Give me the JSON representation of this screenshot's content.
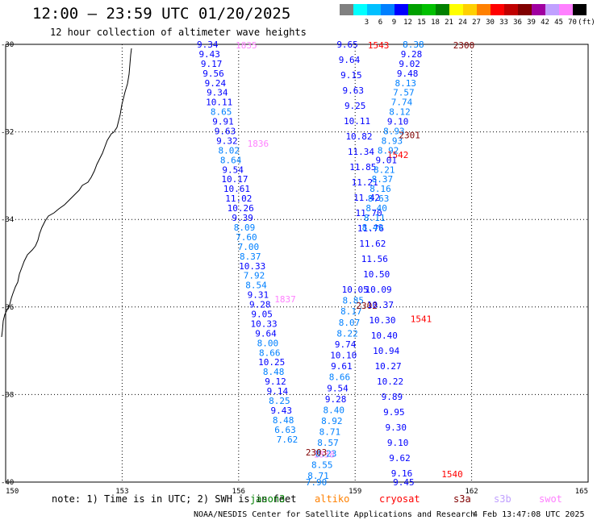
{
  "header": {
    "title": "12:00 – 23:59 UTC 01/20/2025",
    "subtitle": "12 hour collection of altimeter wave heights"
  },
  "legend": {
    "unit": "(ft)",
    "items": [
      {
        "label": "",
        "color": "#808080"
      },
      {
        "label": "3",
        "color": "#00ffff"
      },
      {
        "label": "6",
        "color": "#00c0ff"
      },
      {
        "label": "9",
        "color": "#0080ff"
      },
      {
        "label": "12",
        "color": "#0000ff"
      },
      {
        "label": "15",
        "color": "#00a000"
      },
      {
        "label": "18",
        "color": "#00c000"
      },
      {
        "label": "21",
        "color": "#008000"
      },
      {
        "label": "24",
        "color": "#ffff00"
      },
      {
        "label": "27",
        "color": "#ffd000"
      },
      {
        "label": "30",
        "color": "#ff8000"
      },
      {
        "label": "33",
        "color": "#ff0000"
      },
      {
        "label": "36",
        "color": "#c00000"
      },
      {
        "label": "39",
        "color": "#800000"
      },
      {
        "label": "42",
        "color": "#a000a0"
      },
      {
        "label": "45",
        "color": "#c0a0ff"
      },
      {
        "label": "70",
        "color": "#ff80ff"
      },
      {
        "label": "",
        "color": "#000000"
      }
    ]
  },
  "axes": {
    "lon_ticks": [
      "150",
      "153",
      "156",
      "159",
      "162",
      "165"
    ],
    "lat_ticks": [
      "-30",
      "-32",
      "-34",
      "-36",
      "-38",
      "-40"
    ]
  },
  "coast": [
    [
      163,
      60
    ],
    [
      162,
      68
    ],
    [
      161,
      80
    ],
    [
      160,
      92
    ],
    [
      158,
      104
    ],
    [
      155,
      114
    ],
    [
      153,
      122
    ],
    [
      151,
      130
    ],
    [
      149,
      142
    ],
    [
      147,
      150
    ],
    [
      145,
      158
    ],
    [
      141,
      164
    ],
    [
      138,
      166
    ],
    [
      133,
      174
    ],
    [
      130,
      182
    ],
    [
      127,
      190
    ],
    [
      123,
      198
    ],
    [
      120,
      204
    ],
    [
      117,
      212
    ],
    [
      113,
      220
    ],
    [
      109,
      226
    ],
    [
      102,
      230
    ],
    [
      98,
      236
    ],
    [
      92,
      242
    ],
    [
      86,
      248
    ],
    [
      80,
      254
    ],
    [
      73,
      259
    ],
    [
      67,
      264
    ],
    [
      60,
      268
    ],
    [
      56,
      274
    ],
    [
      52,
      282
    ],
    [
      49,
      290
    ],
    [
      47,
      298
    ],
    [
      44,
      305
    ],
    [
      40,
      310
    ],
    [
      34,
      316
    ],
    [
      30,
      324
    ],
    [
      27,
      332
    ],
    [
      24,
      340
    ],
    [
      22,
      350
    ],
    [
      19,
      356
    ],
    [
      16,
      364
    ],
    [
      14,
      370
    ],
    [
      12,
      378
    ],
    [
      9,
      384
    ],
    [
      6,
      390
    ],
    [
      4,
      398
    ],
    [
      3,
      410
    ],
    [
      2,
      418
    ]
  ],
  "tracks": [
    {
      "times": [
        {
          "text": "1835",
          "lon": 156.2,
          "lat": -30.0,
          "color": "#ff80ff"
        },
        {
          "text": "1836",
          "lon": 156.5,
          "lat": -32.25,
          "color": "#ff80ff"
        },
        {
          "text": "1837",
          "lon": 157.2,
          "lat": -35.8,
          "color": "#ff80ff"
        },
        {
          "text": "1838",
          "lon": 158.2,
          "lat": -39.35,
          "color": "#ff80ff"
        }
      ],
      "points": [
        {
          "v": "9.34",
          "lon": 155.2,
          "lat": -30.0,
          "color": "#0000ff"
        },
        {
          "v": "9.43",
          "lon": 155.25,
          "lat": -30.22,
          "color": "#0000ff"
        },
        {
          "v": "9.17",
          "lon": 155.3,
          "lat": -30.44,
          "color": "#0000ff"
        },
        {
          "v": "9.56",
          "lon": 155.35,
          "lat": -30.66,
          "color": "#0000ff"
        },
        {
          "v": "9.24",
          "lon": 155.4,
          "lat": -30.88,
          "color": "#0000ff"
        },
        {
          "v": "9.34",
          "lon": 155.45,
          "lat": -31.1,
          "color": "#0000ff"
        },
        {
          "v": "10.11",
          "lon": 155.5,
          "lat": -31.32,
          "color": "#0000ff"
        },
        {
          "v": "8.65",
          "lon": 155.55,
          "lat": -31.54,
          "color": "#0080ff"
        },
        {
          "v": "9.91",
          "lon": 155.6,
          "lat": -31.76,
          "color": "#0000ff"
        },
        {
          "v": "9.63",
          "lon": 155.65,
          "lat": -31.98,
          "color": "#0000ff"
        },
        {
          "v": "9.32",
          "lon": 155.7,
          "lat": -32.2,
          "color": "#0000ff"
        },
        {
          "v": "8.02",
          "lon": 155.75,
          "lat": -32.42,
          "color": "#0080ff"
        },
        {
          "v": "8.64",
          "lon": 155.8,
          "lat": -32.64,
          "color": "#0080ff"
        },
        {
          "v": "9.54",
          "lon": 155.85,
          "lat": -32.86,
          "color": "#0000ff"
        },
        {
          "v": "10.17",
          "lon": 155.9,
          "lat": -33.08,
          "color": "#0000ff"
        },
        {
          "v": "10.61",
          "lon": 155.95,
          "lat": -33.3,
          "color": "#0000ff"
        },
        {
          "v": "11.02",
          "lon": 156.0,
          "lat": -33.52,
          "color": "#0000ff"
        },
        {
          "v": "10.26",
          "lon": 156.05,
          "lat": -33.74,
          "color": "#0000ff"
        },
        {
          "v": "9.39",
          "lon": 156.1,
          "lat": -33.96,
          "color": "#0000ff"
        },
        {
          "v": "8.09",
          "lon": 156.15,
          "lat": -34.18,
          "color": "#0080ff"
        },
        {
          "v": "7.60",
          "lon": 156.2,
          "lat": -34.4,
          "color": "#0080ff"
        },
        {
          "v": "7.00",
          "lon": 156.25,
          "lat": -34.62,
          "color": "#0080ff"
        },
        {
          "v": "8.37",
          "lon": 156.3,
          "lat": -34.84,
          "color": "#0080ff"
        },
        {
          "v": "10.33",
          "lon": 156.35,
          "lat": -35.06,
          "color": "#0000ff"
        },
        {
          "v": "7.92",
          "lon": 156.4,
          "lat": -35.28,
          "color": "#0080ff"
        },
        {
          "v": "8.54",
          "lon": 156.45,
          "lat": -35.5,
          "color": "#0080ff"
        },
        {
          "v": "9.31",
          "lon": 156.5,
          "lat": -35.72,
          "color": "#0000ff"
        },
        {
          "v": "9.28",
          "lon": 156.55,
          "lat": -35.94,
          "color": "#0000ff"
        },
        {
          "v": "9.05",
          "lon": 156.6,
          "lat": -36.16,
          "color": "#0000ff"
        },
        {
          "v": "10.33",
          "lon": 156.65,
          "lat": -36.38,
          "color": "#0000ff"
        },
        {
          "v": "9.64",
          "lon": 156.7,
          "lat": -36.6,
          "color": "#0000ff"
        },
        {
          "v": "8.00",
          "lon": 156.75,
          "lat": -36.82,
          "color": "#0080ff"
        },
        {
          "v": "8.66",
          "lon": 156.8,
          "lat": -37.04,
          "color": "#0080ff"
        },
        {
          "v": "10.25",
          "lon": 156.85,
          "lat": -37.26,
          "color": "#0000ff"
        },
        {
          "v": "8.48",
          "lon": 156.9,
          "lat": -37.48,
          "color": "#0080ff"
        },
        {
          "v": "9.12",
          "lon": 156.95,
          "lat": -37.7,
          "color": "#0000ff"
        },
        {
          "v": "9.14",
          "lon": 157.0,
          "lat": -37.92,
          "color": "#0000ff"
        },
        {
          "v": "8.25",
          "lon": 157.05,
          "lat": -38.14,
          "color": "#0080ff"
        },
        {
          "v": "9.43",
          "lon": 157.1,
          "lat": -38.36,
          "color": "#0000ff"
        },
        {
          "v": "8.48",
          "lon": 157.15,
          "lat": -38.58,
          "color": "#0080ff"
        },
        {
          "v": "6.63",
          "lon": 157.2,
          "lat": -38.8,
          "color": "#0080ff"
        },
        {
          "v": "7.62",
          "lon": 157.25,
          "lat": -39.02,
          "color": "#0080ff"
        }
      ]
    },
    {
      "times": [
        {
          "text": "2302",
          "lon": 159.3,
          "lat": -35.95,
          "color": "#800000"
        },
        {
          "text": "2303",
          "lon": 158.0,
          "lat": -39.3,
          "color": "#800000"
        }
      ],
      "points": [
        {
          "v": "10.05",
          "lon": 159.0,
          "lat": -35.6,
          "color": "#0000ff"
        },
        {
          "v": "8.85",
          "lon": 158.95,
          "lat": -35.85,
          "color": "#0080ff"
        },
        {
          "v": "8.17",
          "lon": 158.9,
          "lat": -36.1,
          "color": "#0080ff"
        },
        {
          "v": "8.07",
          "lon": 158.85,
          "lat": -36.35,
          "color": "#0080ff"
        },
        {
          "v": "8.22",
          "lon": 158.8,
          "lat": -36.6,
          "color": "#0080ff"
        },
        {
          "v": "9.74",
          "lon": 158.75,
          "lat": -36.85,
          "color": "#0000ff"
        },
        {
          "v": "10.10",
          "lon": 158.7,
          "lat": -37.1,
          "color": "#0000ff"
        },
        {
          "v": "9.61",
          "lon": 158.65,
          "lat": -37.35,
          "color": "#0000ff"
        },
        {
          "v": "8.66",
          "lon": 158.6,
          "lat": -37.6,
          "color": "#0080ff"
        },
        {
          "v": "9.54",
          "lon": 158.55,
          "lat": -37.85,
          "color": "#0000ff"
        },
        {
          "v": "9.28",
          "lon": 158.5,
          "lat": -38.1,
          "color": "#0000ff"
        },
        {
          "v": "8.40",
          "lon": 158.45,
          "lat": -38.35,
          "color": "#0080ff"
        },
        {
          "v": "8.92",
          "lon": 158.4,
          "lat": -38.6,
          "color": "#0080ff"
        },
        {
          "v": "8.71",
          "lon": 158.35,
          "lat": -38.85,
          "color": "#0080ff"
        },
        {
          "v": "8.57",
          "lon": 158.3,
          "lat": -39.1,
          "color": "#0080ff"
        },
        {
          "v": "8.23",
          "lon": 158.25,
          "lat": -39.35,
          "color": "#0080ff"
        },
        {
          "v": "8.55",
          "lon": 158.15,
          "lat": -39.6,
          "color": "#0080ff"
        },
        {
          "v": "8.71",
          "lon": 158.05,
          "lat": -39.85,
          "color": "#0080ff"
        },
        {
          "v": "7.90",
          "lon": 158.0,
          "lat": -40.0,
          "color": "#0080ff"
        }
      ]
    },
    {
      "times": [
        {
          "text": "1543",
          "lon": 159.6,
          "lat": -30.0,
          "color": "#ff0000"
        },
        {
          "text": "1542",
          "lon": 160.1,
          "lat": -32.5,
          "color": "#ff0000"
        },
        {
          "text": "1541",
          "lon": 160.7,
          "lat": -36.25,
          "color": "#ff0000"
        },
        {
          "text": "1540",
          "lon": 161.5,
          "lat": -39.8,
          "color": "#ff0000"
        }
      ],
      "points": [
        {
          "v": "9.65",
          "lon": 158.8,
          "lat": -30.0,
          "color": "#0000ff"
        },
        {
          "v": "9.64",
          "lon": 158.85,
          "lat": -30.35,
          "color": "#0000ff"
        },
        {
          "v": "9.15",
          "lon": 158.9,
          "lat": -30.7,
          "color": "#0000ff"
        },
        {
          "v": "9.63",
          "lon": 158.95,
          "lat": -31.05,
          "color": "#0000ff"
        },
        {
          "v": "9.25",
          "lon": 159.0,
          "lat": -31.4,
          "color": "#0000ff"
        },
        {
          "v": "10.11",
          "lon": 159.05,
          "lat": -31.75,
          "color": "#0000ff"
        },
        {
          "v": "10.82",
          "lon": 159.1,
          "lat": -32.1,
          "color": "#0000ff"
        },
        {
          "v": "11.34",
          "lon": 159.15,
          "lat": -32.45,
          "color": "#0000ff"
        },
        {
          "v": "11.85",
          "lon": 159.2,
          "lat": -32.8,
          "color": "#0000ff"
        },
        {
          "v": "11.21",
          "lon": 159.25,
          "lat": -33.15,
          "color": "#0000ff"
        },
        {
          "v": "11.42",
          "lon": 159.3,
          "lat": -33.5,
          "color": "#0000ff"
        },
        {
          "v": "11.70",
          "lon": 159.35,
          "lat": -33.85,
          "color": "#0000ff"
        },
        {
          "v": "11.76",
          "lon": 159.4,
          "lat": -34.2,
          "color": "#0000ff"
        },
        {
          "v": "11.62",
          "lon": 159.45,
          "lat": -34.55,
          "color": "#0000ff"
        },
        {
          "v": "11.56",
          "lon": 159.5,
          "lat": -34.9,
          "color": "#0000ff"
        },
        {
          "v": "10.50",
          "lon": 159.55,
          "lat": -35.25,
          "color": "#0000ff"
        },
        {
          "v": "10.09",
          "lon": 159.6,
          "lat": -35.6,
          "color": "#0000ff"
        },
        {
          "v": "10.37",
          "lon": 159.65,
          "lat": -35.95,
          "color": "#0000ff"
        },
        {
          "v": "10.30",
          "lon": 159.7,
          "lat": -36.3,
          "color": "#0000ff"
        },
        {
          "v": "10.40",
          "lon": 159.75,
          "lat": -36.65,
          "color": "#0000ff"
        },
        {
          "v": "10.94",
          "lon": 159.8,
          "lat": -37.0,
          "color": "#0000ff"
        },
        {
          "v": "10.27",
          "lon": 159.85,
          "lat": -37.35,
          "color": "#0000ff"
        },
        {
          "v": "10.22",
          "lon": 159.9,
          "lat": -37.7,
          "color": "#0000ff"
        },
        {
          "v": "9.89",
          "lon": 159.95,
          "lat": -38.05,
          "color": "#0000ff"
        },
        {
          "v": "9.95",
          "lon": 160.0,
          "lat": -38.4,
          "color": "#0000ff"
        },
        {
          "v": "9.30",
          "lon": 160.05,
          "lat": -38.75,
          "color": "#0000ff"
        },
        {
          "v": "9.10",
          "lon": 160.1,
          "lat": -39.1,
          "color": "#0000ff"
        },
        {
          "v": "9.62",
          "lon": 160.15,
          "lat": -39.45,
          "color": "#0000ff"
        },
        {
          "v": "9.16",
          "lon": 160.2,
          "lat": -39.8,
          "color": "#0000ff"
        },
        {
          "v": "9.45",
          "lon": 160.25,
          "lat": -40.0,
          "color": "#0000ff"
        }
      ]
    },
    {
      "times": [
        {
          "text": "2300",
          "lon": 161.8,
          "lat": -30.0,
          "color": "#800000"
        },
        {
          "text": "2301",
          "lon": 160.4,
          "lat": -32.05,
          "color": "#800000"
        }
      ],
      "points": [
        {
          "v": "8.38",
          "lon": 160.5,
          "lat": -30.0,
          "color": "#0080ff"
        },
        {
          "v": "9.28",
          "lon": 160.45,
          "lat": -30.22,
          "color": "#0000ff"
        },
        {
          "v": "9.02",
          "lon": 160.4,
          "lat": -30.44,
          "color": "#0000ff"
        },
        {
          "v": "9.48",
          "lon": 160.35,
          "lat": -30.66,
          "color": "#0000ff"
        },
        {
          "v": "8.13",
          "lon": 160.3,
          "lat": -30.88,
          "color": "#0080ff"
        },
        {
          "v": "7.57",
          "lon": 160.25,
          "lat": -31.1,
          "color": "#0080ff"
        },
        {
          "v": "7.74",
          "lon": 160.2,
          "lat": -31.32,
          "color": "#0080ff"
        },
        {
          "v": "8.12",
          "lon": 160.15,
          "lat": -31.54,
          "color": "#0080ff"
        },
        {
          "v": "9.10",
          "lon": 160.1,
          "lat": -31.76,
          "color": "#0000ff"
        },
        {
          "v": "8.93",
          "lon": 160.0,
          "lat": -31.98,
          "color": "#0080ff"
        },
        {
          "v": "8.93",
          "lon": 159.95,
          "lat": -32.2,
          "color": "#0080ff"
        },
        {
          "v": "8.92",
          "lon": 159.85,
          "lat": -32.42,
          "color": "#0080ff"
        },
        {
          "v": "9.01",
          "lon": 159.8,
          "lat": -32.64,
          "color": "#0000ff"
        },
        {
          "v": "8.21",
          "lon": 159.75,
          "lat": -32.86,
          "color": "#0080ff"
        },
        {
          "v": "8.37",
          "lon": 159.7,
          "lat": -33.08,
          "color": "#0080ff"
        },
        {
          "v": "8.16",
          "lon": 159.65,
          "lat": -33.3,
          "color": "#0080ff"
        },
        {
          "v": "8.63",
          "lon": 159.6,
          "lat": -33.52,
          "color": "#0080ff"
        },
        {
          "v": "8.40",
          "lon": 159.55,
          "lat": -33.74,
          "color": "#0080ff"
        },
        {
          "v": "8.11",
          "lon": 159.5,
          "lat": -33.96,
          "color": "#0080ff"
        },
        {
          "v": "8.49",
          "lon": 159.45,
          "lat": -34.18,
          "color": "#0080ff"
        }
      ]
    }
  ],
  "footer": {
    "note": "note: 1) Time is in UTC; 2) SWH is in feet",
    "satellites": [
      {
        "name": "jason3",
        "color": "#008000"
      },
      {
        "name": "altiko",
        "color": "#ff8000"
      },
      {
        "name": "cryosat",
        "color": "#ff0000"
      },
      {
        "name": "s3a",
        "color": "#800000"
      },
      {
        "name": "s3b",
        "color": "#c0a0ff"
      },
      {
        "name": "swot",
        "color": "#ff80ff"
      }
    ],
    "credit": "NOAA/NESDIS Center for Satellite Applications and Research",
    "timestamp": "4 Feb 13:47:08 UTC 2025"
  }
}
